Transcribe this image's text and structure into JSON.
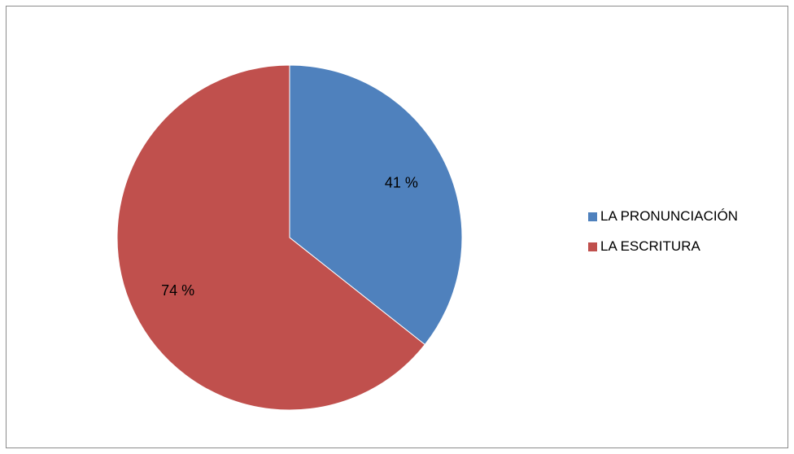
{
  "chart_data": {
    "type": "pie",
    "title": "",
    "categories": [
      "LA PRONUNCIACIÓN",
      "LA ESCRITURA"
    ],
    "values": [
      41,
      74
    ],
    "data_labels": [
      "41 %",
      "74 %"
    ],
    "colors": [
      "#4F81BD",
      "#C0504D"
    ],
    "start_angle_deg": 0,
    "direction": "clockwise",
    "legend_position": "right"
  },
  "legend": {
    "items": [
      {
        "label": "LA PRONUNCIACIÓN",
        "color": "#4F81BD"
      },
      {
        "label": "LA ESCRITURA",
        "color": "#C0504D"
      }
    ]
  },
  "colors": {
    "border": "#8C8C8C",
    "background": "#FFFFFF",
    "slice_stroke": "#FFFFFF"
  }
}
